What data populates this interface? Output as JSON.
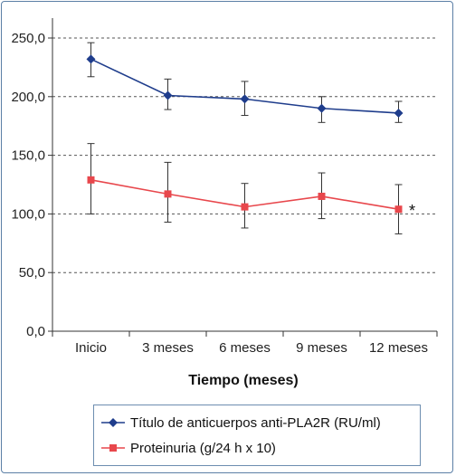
{
  "chart_data": {
    "type": "line",
    "title": "",
    "xlabel": "Tiempo (meses)",
    "ylabel": "",
    "categories": [
      "Inicio",
      "3 meses",
      "6 meses",
      "9 meses",
      "12 meses"
    ],
    "ylim": [
      0,
      250
    ],
    "yticks": [
      "0,0",
      "50,0",
      "100,0",
      "150,0",
      "200,0",
      "250,0"
    ],
    "grid": true,
    "legend_position": "bottom",
    "series": [
      {
        "name": "Título de anticuerpos anti-PLA2R (RU/ml)",
        "color": "#1f3d8c",
        "marker": "diamond",
        "values": [
          232,
          201,
          198,
          190,
          186
        ],
        "err_low": [
          217,
          189,
          184,
          178,
          178
        ],
        "err_high": [
          246,
          215,
          213,
          200,
          196
        ]
      },
      {
        "name": "Proteinuria (g/24 h x 10)",
        "color": "#e8474c",
        "marker": "square",
        "values": [
          129,
          117,
          106,
          115,
          104
        ],
        "err_low": [
          100,
          93,
          88,
          96,
          83
        ],
        "err_high": [
          160,
          144,
          126,
          135,
          125
        ]
      }
    ],
    "annotations": [
      {
        "text": "*",
        "category": "12 meses",
        "series": 1
      }
    ]
  }
}
